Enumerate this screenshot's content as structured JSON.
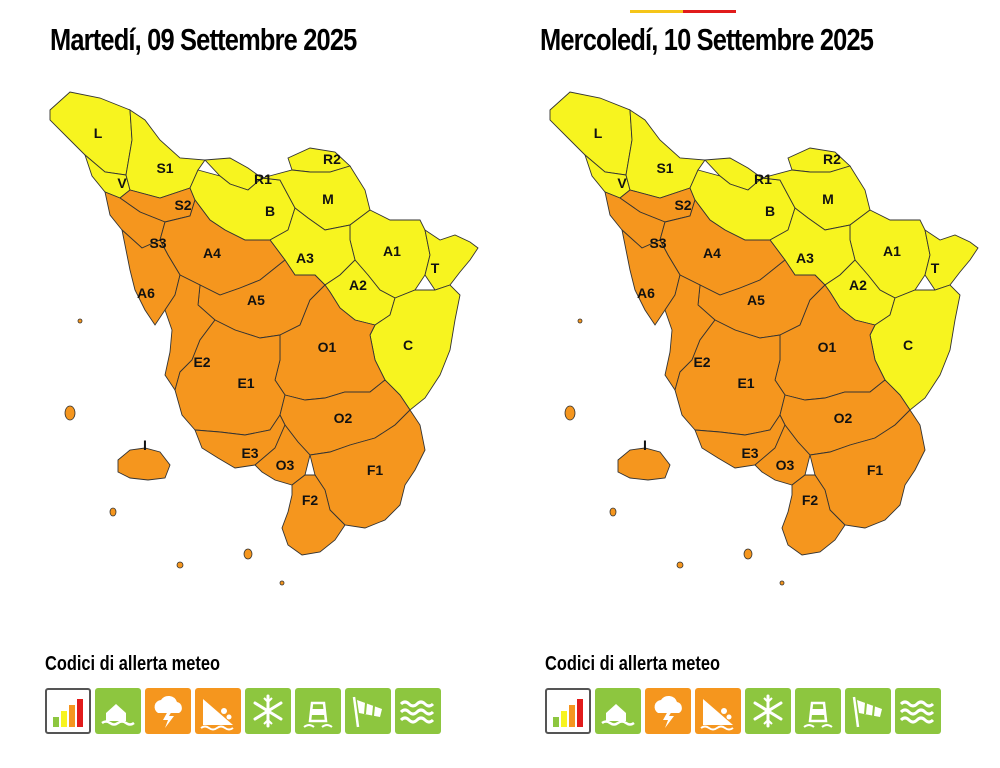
{
  "colors": {
    "yellow": "#f7f41f",
    "orange": "#f5961e",
    "red": "#e11b1b",
    "green": "#8dc63f",
    "icon_white": "#ffffff"
  },
  "days": [
    {
      "title": "Martedí, 09 Settembre 2025",
      "zones": {
        "L": "yellow",
        "S1": "yellow",
        "V": "yellow",
        "R1": "yellow",
        "R2": "yellow",
        "B": "yellow",
        "M": "yellow",
        "A1": "yellow",
        "T": "yellow",
        "A2": "yellow",
        "A3": "yellow",
        "C": "yellow",
        "S2": "orange",
        "S3": "orange",
        "A4": "orange",
        "A5": "orange",
        "A6": "orange",
        "O1": "orange",
        "E2": "orange",
        "E1": "orange",
        "O2": "orange",
        "E3": "orange",
        "O3": "orange",
        "F1": "orange",
        "F2": "orange",
        "I": "orange"
      },
      "legend_title": "Codici di allerta meteo",
      "icons": [
        {
          "name": "risk-level-icon",
          "status": "selected"
        },
        {
          "name": "hydro-flood-icon",
          "status": "green"
        },
        {
          "name": "thunderstorm-icon",
          "status": "orange"
        },
        {
          "name": "landslide-icon",
          "status": "orange"
        },
        {
          "name": "snow-icon",
          "status": "green"
        },
        {
          "name": "ice-icon",
          "status": "green"
        },
        {
          "name": "wind-icon",
          "status": "green"
        },
        {
          "name": "sea-storm-icon",
          "status": "green"
        }
      ]
    },
    {
      "title": "Mercoledí, 10 Settembre 2025",
      "zones": {
        "L": "yellow",
        "S1": "yellow",
        "V": "yellow",
        "R1": "yellow",
        "R2": "yellow",
        "B": "yellow",
        "M": "yellow",
        "A1": "yellow",
        "T": "yellow",
        "A2": "yellow",
        "A3": "yellow",
        "C": "yellow",
        "S2": "orange",
        "S3": "orange",
        "A4": "orange",
        "A5": "orange",
        "A6": "orange",
        "O1": "orange",
        "E2": "orange",
        "E1": "orange",
        "O2": "orange",
        "E3": "orange",
        "O3": "orange",
        "F1": "orange",
        "F2": "orange",
        "I": "orange"
      },
      "legend_title": "Codici di allerta meteo",
      "icons": [
        {
          "name": "risk-level-icon",
          "status": "selected"
        },
        {
          "name": "hydro-flood-icon",
          "status": "green"
        },
        {
          "name": "thunderstorm-icon",
          "status": "orange"
        },
        {
          "name": "landslide-icon",
          "status": "orange"
        },
        {
          "name": "snow-icon",
          "status": "green"
        },
        {
          "name": "ice-icon",
          "status": "green"
        },
        {
          "name": "wind-icon",
          "status": "green"
        },
        {
          "name": "sea-storm-icon",
          "status": "green"
        }
      ]
    }
  ]
}
